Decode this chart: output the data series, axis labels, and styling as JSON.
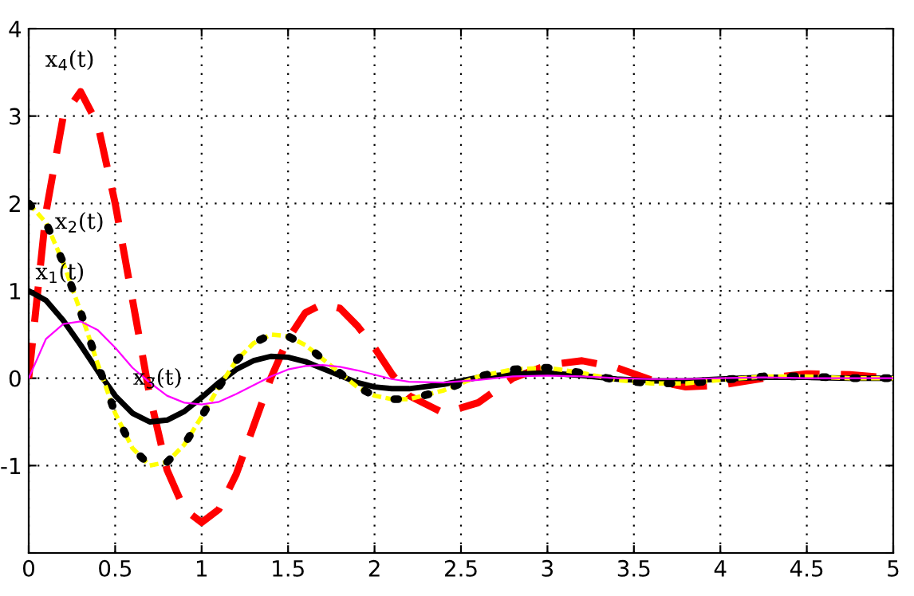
{
  "chart_data": {
    "type": "line",
    "x": [
      0,
      0.1,
      0.2,
      0.3,
      0.4,
      0.5,
      0.6,
      0.7,
      0.8,
      0.9,
      1.0,
      1.1,
      1.2,
      1.3,
      1.4,
      1.5,
      1.6,
      1.7,
      1.8,
      1.9,
      2.0,
      2.1,
      2.2,
      2.4,
      2.6,
      2.8,
      3.0,
      3.2,
      3.4,
      3.6,
      3.8,
      4.0,
      4.25,
      4.5,
      4.75,
      5
    ],
    "series": [
      {
        "color": "#ffff00",
        "line_style": "dashed",
        "values": [
          2,
          1.78,
          1.32,
          0.76,
          0.16,
          -0.4,
          -0.8,
          -1.0,
          -0.96,
          -0.76,
          -0.44,
          -0.1,
          0.2,
          0.4,
          0.5,
          0.48,
          0.38,
          0.22,
          0.06,
          -0.1,
          -0.2,
          -0.24,
          -0.24,
          -0.14,
          0.02,
          0.1,
          0.12,
          0.06,
          -0.02,
          -0.06,
          -0.06,
          -0.02,
          0.02,
          0.02,
          0,
          0
        ]
      },
      {
        "name": "x$_{2}$(t)",
        "color": "#000000",
        "line_style": "dotted",
        "values": [
          2,
          1.78,
          1.32,
          0.76,
          0.16,
          -0.4,
          -0.8,
          -1.0,
          -0.96,
          -0.76,
          -0.44,
          -0.1,
          0.2,
          0.4,
          0.5,
          0.48,
          0.38,
          0.22,
          0.06,
          -0.1,
          -0.2,
          -0.24,
          -0.24,
          -0.14,
          0.02,
          0.1,
          0.12,
          0.06,
          -0.02,
          -0.06,
          -0.06,
          -0.02,
          0.02,
          0.02,
          0,
          0
        ]
      },
      {
        "name": "x$_{3}$(t)",
        "color": "#ff00ff",
        "line_style": "solid",
        "values": [
          0,
          0.45,
          0.62,
          0.65,
          0.55,
          0.35,
          0.12,
          -0.05,
          -0.2,
          -0.28,
          -0.3,
          -0.27,
          -0.18,
          -0.08,
          0.02,
          0.1,
          0.14,
          0.15,
          0.13,
          0.09,
          0.04,
          -0.01,
          -0.04,
          -0.05,
          -0.02,
          0.02,
          0.03,
          0.02,
          0,
          -0.01,
          -0.01,
          0,
          0.01,
          0,
          0,
          0
        ]
      },
      {
        "name": "x$_{1}$(t)",
        "color": "#000000",
        "line_style": "solid",
        "values": [
          1.0,
          0.89,
          0.66,
          0.38,
          0.08,
          -0.2,
          -0.4,
          -0.5,
          -0.48,
          -0.38,
          -0.22,
          -0.05,
          0.1,
          0.2,
          0.25,
          0.24,
          0.19,
          0.11,
          0.03,
          -0.05,
          -0.1,
          -0.12,
          -0.12,
          -0.07,
          0.01,
          0.05,
          0.06,
          0.03,
          -0.01,
          -0.03,
          -0.03,
          -0.01,
          0.01,
          0.01,
          0,
          0
        ]
      },
      {
        "name": "x$_{4}$(t)",
        "color": "#ff0000",
        "line_style": "dashed",
        "values": [
          0,
          1.9,
          3.0,
          3.28,
          2.9,
          2.0,
          0.9,
          -0.2,
          -1.05,
          -1.5,
          -1.65,
          -1.5,
          -1.1,
          -0.55,
          0,
          0.45,
          0.75,
          0.85,
          0.8,
          0.6,
          0.35,
          0.05,
          -0.2,
          -0.4,
          -0.28,
          0,
          0.15,
          0.2,
          0.12,
          -0.02,
          -0.1,
          -0.08,
          0,
          0.05,
          0.04,
          0
        ]
      }
    ],
    "xlim": [
      0,
      5
    ],
    "ylim": [
      -2,
      4
    ],
    "xticks": [
      0,
      0.5,
      1,
      1.5,
      2,
      2.5,
      3,
      3.5,
      4,
      4.5,
      5
    ],
    "yticks": [
      {
        "value": -2,
        "label": null
      },
      -1,
      0,
      1,
      2,
      3,
      4
    ],
    "grid": true,
    "marker": "none"
  }
}
